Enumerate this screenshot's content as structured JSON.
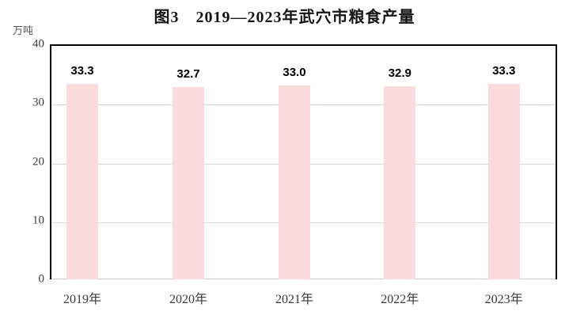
{
  "title": "图3　2019—2023年武穴市粮食产量",
  "unit_label": "万吨",
  "colors": {
    "bar_fill": "#fbdbdd",
    "gridline": "#d9d9d9",
    "baseline": "#cccccc",
    "plot_border": "#000000",
    "title_text": "#141414",
    "value_label_text": "#000000",
    "axis_text": "#3d3d3d"
  },
  "chart_data": {
    "type": "bar",
    "title": "图3　2019—2023年武穴市粮食产量",
    "categories": [
      "2019年",
      "2020年",
      "2021年",
      "2022年",
      "2023年"
    ],
    "values": [
      33.3,
      32.7,
      33.0,
      32.9,
      33.3
    ],
    "value_labels": [
      "33.3",
      "32.7",
      "33.0",
      "32.9",
      "33.3"
    ],
    "xlabel": "",
    "ylabel": "万吨",
    "ylim": [
      0,
      40
    ],
    "yticks": [
      0,
      10,
      20,
      30,
      40
    ],
    "grid": true,
    "legend": false,
    "series_name": "粮食产量"
  }
}
